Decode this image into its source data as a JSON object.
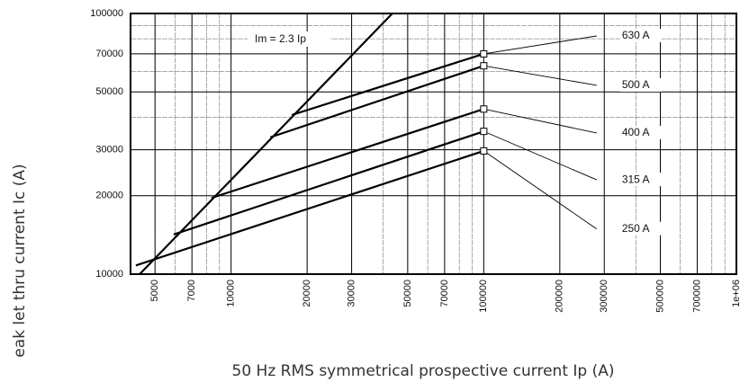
{
  "chart_data": {
    "type": "line",
    "log_x": true,
    "log_y": true,
    "grid": true,
    "x_label": "50 Hz RMS symmetrical prospective current Ip (A)",
    "y_label": "eak let thru current Ic (A)",
    "xlim": [
      4000,
      1000000
    ],
    "ylim": [
      10000,
      100000
    ],
    "xticks": [
      5000,
      7000,
      10000,
      20000,
      30000,
      50000,
      70000,
      100000,
      200000,
      300000,
      500000,
      700000,
      {
        "value": 1000000,
        "label": "1e+06"
      }
    ],
    "yticks": [
      10000,
      20000,
      30000,
      50000,
      70000,
      100000
    ],
    "limit_line": {
      "name": "Im = 2.3 Ip",
      "color": "#000000",
      "x": [
        4348,
        43478
      ],
      "values": [
        10000,
        100000
      ]
    },
    "series": [
      {
        "name": "630 A",
        "color": "#000000",
        "x": [
          17400,
          100000,
          280000
        ],
        "values": [
          40800,
          70000,
          82000
        ]
      },
      {
        "name": "500 A",
        "color": "#000000",
        "x": [
          14300,
          100000,
          280000
        ],
        "values": [
          33500,
          63000,
          53000
        ]
      },
      {
        "name": "400 A",
        "color": "#000000",
        "x": [
          8360,
          100000,
          280000
        ],
        "values": [
          19600,
          43000,
          34800
        ]
      },
      {
        "name": "315 A",
        "color": "#000000",
        "x": [
          5930,
          100000,
          280000
        ],
        "values": [
          14200,
          35300,
          23000
        ]
      },
      {
        "name": "250 A",
        "color": "#000000",
        "x": [
          4200,
          100000,
          280000
        ],
        "values": [
          10800,
          29700,
          14900
        ]
      }
    ]
  }
}
